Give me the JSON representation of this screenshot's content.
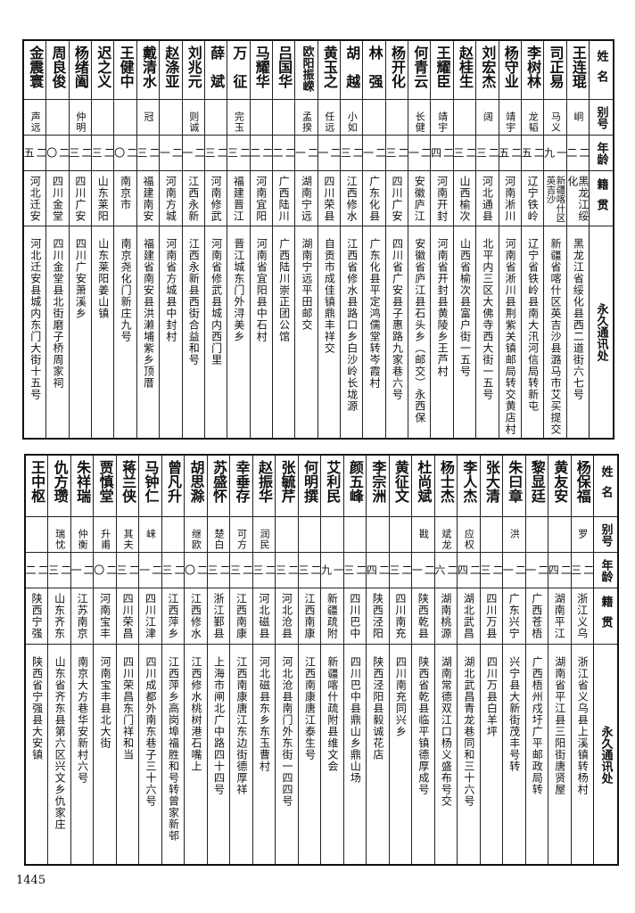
{
  "page_number": "1445",
  "tables": [
    {
      "headers": {
        "name": "姓名",
        "alias": "别号",
        "age": "年龄",
        "native": "籍贯",
        "address": "永久通讯处"
      },
      "rows": [
        {
          "name": "王连琨",
          "alias": "峒",
          "age": "二二",
          "native": "黑龙江绥化",
          "address": "黑龙江省绥化县西二道街六七号"
        },
        {
          "name": "司正易",
          "alias": "马义",
          "age": "一九",
          "native": "新疆喀什区英吉沙",
          "address": "新疆省喀什区英吉沙县潞马市艾买提交"
        },
        {
          "name": "李树林",
          "alias": "龙韬",
          "age": "二五",
          "native": "辽宁铁岭",
          "address": "辽宁省铁岭县南大汛河信局转新屯"
        },
        {
          "name": "杨守业",
          "alias": "靖宇",
          "age": "二五",
          "native": "河南淅川",
          "address": "河南省淅川县荆紫关镇邮局转交黄店村"
        },
        {
          "name": "刘宏杰",
          "alias": "阔",
          "age": "二三",
          "native": "河北通县",
          "address": "北平内三区大佛寺西大街一五号"
        },
        {
          "name": "赵桂生",
          "alias": "",
          "age": "二三",
          "native": "山西榆次",
          "address": "山西省榆次县富户街一五号"
        },
        {
          "name": "王耀臣",
          "alias": "靖宇",
          "age": "二四",
          "native": "河南开封",
          "address": "河南省开封县黄陵乡王芦村"
        },
        {
          "name": "何青云",
          "alias": "长健",
          "age": "二一",
          "native": "安徽庐江",
          "address": "安徽省庐江县石头乡（邮交）永西保"
        },
        {
          "name": "杨开化",
          "alias": "",
          "age": "二三",
          "native": "四川广安",
          "address": "四川省广安县子惠路九家巷六号"
        },
        {
          "name": "林　强",
          "alias": "",
          "age": "二一",
          "native": "广东化县",
          "address": "广东化县平定鸿儒堂转岑霞村"
        },
        {
          "name": "胡　越",
          "alias": "小如",
          "age": "二三",
          "native": "江西修水",
          "address": "江西省修水县路口乡白沙岭长垅源"
        },
        {
          "name": "黄玉之",
          "alias": "任远",
          "age": "二一",
          "native": "四川荣县",
          "address": "自贡市成佳镇鼎丰祥交"
        },
        {
          "name": "欧阳振嵘",
          "alias": "孟揆",
          "age": "二一",
          "native": "湖南宁远",
          "address": "湖南宁远平田邮交"
        },
        {
          "name": "吕国华",
          "alias": "",
          "age": "二二",
          "native": "广西陆川",
          "address": "广西陆川崇正团公馆"
        },
        {
          "name": "马耀华",
          "alias": "",
          "age": "二二",
          "native": "河南宜阳",
          "address": "河南省宜阳县中石村"
        },
        {
          "name": "万　征",
          "alias": "完玉",
          "age": "二三",
          "native": "福建晋江",
          "address": "晋江城东门外浔美乡"
        },
        {
          "name": "薛　斌",
          "alias": "",
          "age": "二三",
          "native": "河南修武",
          "address": "河南省修武县城内西门里"
        },
        {
          "name": "刘兆元",
          "alias": "则诚",
          "age": "二一",
          "native": "江西永新",
          "address": "江西永新县西街合益和号"
        },
        {
          "name": "赵涤亚",
          "alias": "",
          "age": "二一",
          "native": "河南方城",
          "address": "河南省方城县中封村"
        },
        {
          "name": "戴清水",
          "alias": "冠",
          "age": "二三",
          "native": "福建南安",
          "address": "福建省南安县洪濑埔紫乡顶厝"
        },
        {
          "name": "王健中",
          "alias": "",
          "age": "二〇",
          "native": "南京市",
          "address": "南京尧化门新庄九号"
        },
        {
          "name": "迟之义",
          "alias": "",
          "age": "二三",
          "native": "山东莱阳",
          "address": "山东莱阳姜山镇"
        },
        {
          "name": "杨绪阖",
          "alias": "仲明",
          "age": "二三",
          "native": "四川广安",
          "address": "四川广安萧溪乡"
        },
        {
          "name": "周良俊",
          "alias": "",
          "age": "二〇",
          "native": "四川金堂",
          "address": "四川金堂县北街磨子桥周家祠"
        },
        {
          "name": "金震寰",
          "alias": "声远",
          "age": "二五",
          "native": "河北迁安",
          "address": "河北迁安县城内东门大街十五号"
        }
      ]
    },
    {
      "headers": {
        "name": "姓名",
        "alias": "别号",
        "age": "年龄",
        "native": "籍贯",
        "address": "永久通讯处"
      },
      "rows": [
        {
          "name": "杨保福",
          "alias": "罗",
          "age": "二三",
          "native": "浙江义乌",
          "address": "浙江省义乌县上溪镇转杨村"
        },
        {
          "name": "黄友安",
          "alias": "",
          "age": "二四",
          "native": "湖南平江",
          "address": "湖南省平江县三阳街唐贤屋"
        },
        {
          "name": "黎显廷",
          "alias": "",
          "age": "二一",
          "native": "广西苍梧",
          "address": "广西梧州戍圩广平邮政局转"
        },
        {
          "name": "朱曰章",
          "alias": "洪",
          "age": "二一",
          "native": "广东兴宁",
          "address": "兴宁县大新街茂丰号转"
        },
        {
          "name": "张大清",
          "alias": "",
          "age": "二三",
          "native": "四川万县",
          "address": "四川万县白羊坪"
        },
        {
          "name": "李人杰",
          "alias": "应权",
          "age": "二四",
          "native": "湖北武昌",
          "address": "湖北武昌青龙巷同和三十六号"
        },
        {
          "name": "杨士杰",
          "alias": "斌龙",
          "age": "二六",
          "native": "湖南桃源",
          "address": "湖南常德双江口杨义盛布号交"
        },
        {
          "name": "杜尚斌",
          "alias": "戡",
          "age": "二一",
          "native": "陕西乾县",
          "address": "陕西省乾县临平镇德厚成号"
        },
        {
          "name": "黄征文",
          "alias": "",
          "age": "二三",
          "native": "四川南充",
          "address": "四川南充同兴乡"
        },
        {
          "name": "李宗洲",
          "alias": "",
          "age": "二四",
          "native": "陕西泾阳",
          "address": "陕西泾阳县毅诚花店"
        },
        {
          "name": "颜五峰",
          "alias": "",
          "age": "二三",
          "native": "四川巴中",
          "address": "四川巴中县鼎山乡鼎山场"
        },
        {
          "name": "艾利民",
          "alias": "",
          "age": "一九",
          "native": "新疆疏附",
          "address": "新疆喀什疏附县维文会"
        },
        {
          "name": "何明撰",
          "alias": "",
          "age": "二三",
          "native": "江西南康",
          "address": "江西南康唐江泰生号"
        },
        {
          "name": "张毓芹",
          "alias": "",
          "age": "二三",
          "native": "河北沧县",
          "address": "河北沧县南门外东街一四四号"
        },
        {
          "name": "赵振华",
          "alias": "润民",
          "age": "二三",
          "native": "河北磁县",
          "address": "河北磁县东乡东玉曹村"
        },
        {
          "name": "幸垂存",
          "alias": "可方",
          "age": "二三",
          "native": "江西南康",
          "address": "江西南康唐江东边街德厚祥"
        },
        {
          "name": "苏盛怀",
          "alias": "楚白",
          "age": "二三",
          "native": "浙江鄞县",
          "address": "上海市闸北广中路四十四号"
        },
        {
          "name": "胡思滁",
          "alias": "继欧",
          "age": "二〇",
          "native": "江西修水",
          "address": "江西修水桃树港石嘴上"
        },
        {
          "name": "曾凡升",
          "alias": "",
          "age": "二三",
          "native": "江西萍乡",
          "address": "江西萍乡高岗埠福胜和号转曾家新邨"
        },
        {
          "name": "马钟仁",
          "alias": "崃",
          "age": "二一",
          "native": "四川江津",
          "address": "四川成都外南东巷子三十六号"
        },
        {
          "name": "蒋兰侠",
          "alias": "其夫",
          "age": "二三",
          "native": "四川荣昌",
          "address": "四川荣昌东门祥和当"
        },
        {
          "name": "贾慎堂",
          "alias": "升甫",
          "age": "二〇",
          "native": "河南宝丰",
          "address": "河南宝丰县北大街"
        },
        {
          "name": "朱祥瑞",
          "alias": "仲衡",
          "age": "二一",
          "native": "江苏南京",
          "address": "南京大方巷华安新村六号"
        },
        {
          "name": "仇方瓒",
          "alias": "瑞忱",
          "age": "二三",
          "native": "山东齐东",
          "address": "山东省齐东县第六区兴文乡仇家庄"
        },
        {
          "name": "王中枢",
          "alias": "",
          "age": "二二",
          "native": "陕西宁强",
          "address": "陕西省宁强县大安镇"
        }
      ]
    }
  ]
}
